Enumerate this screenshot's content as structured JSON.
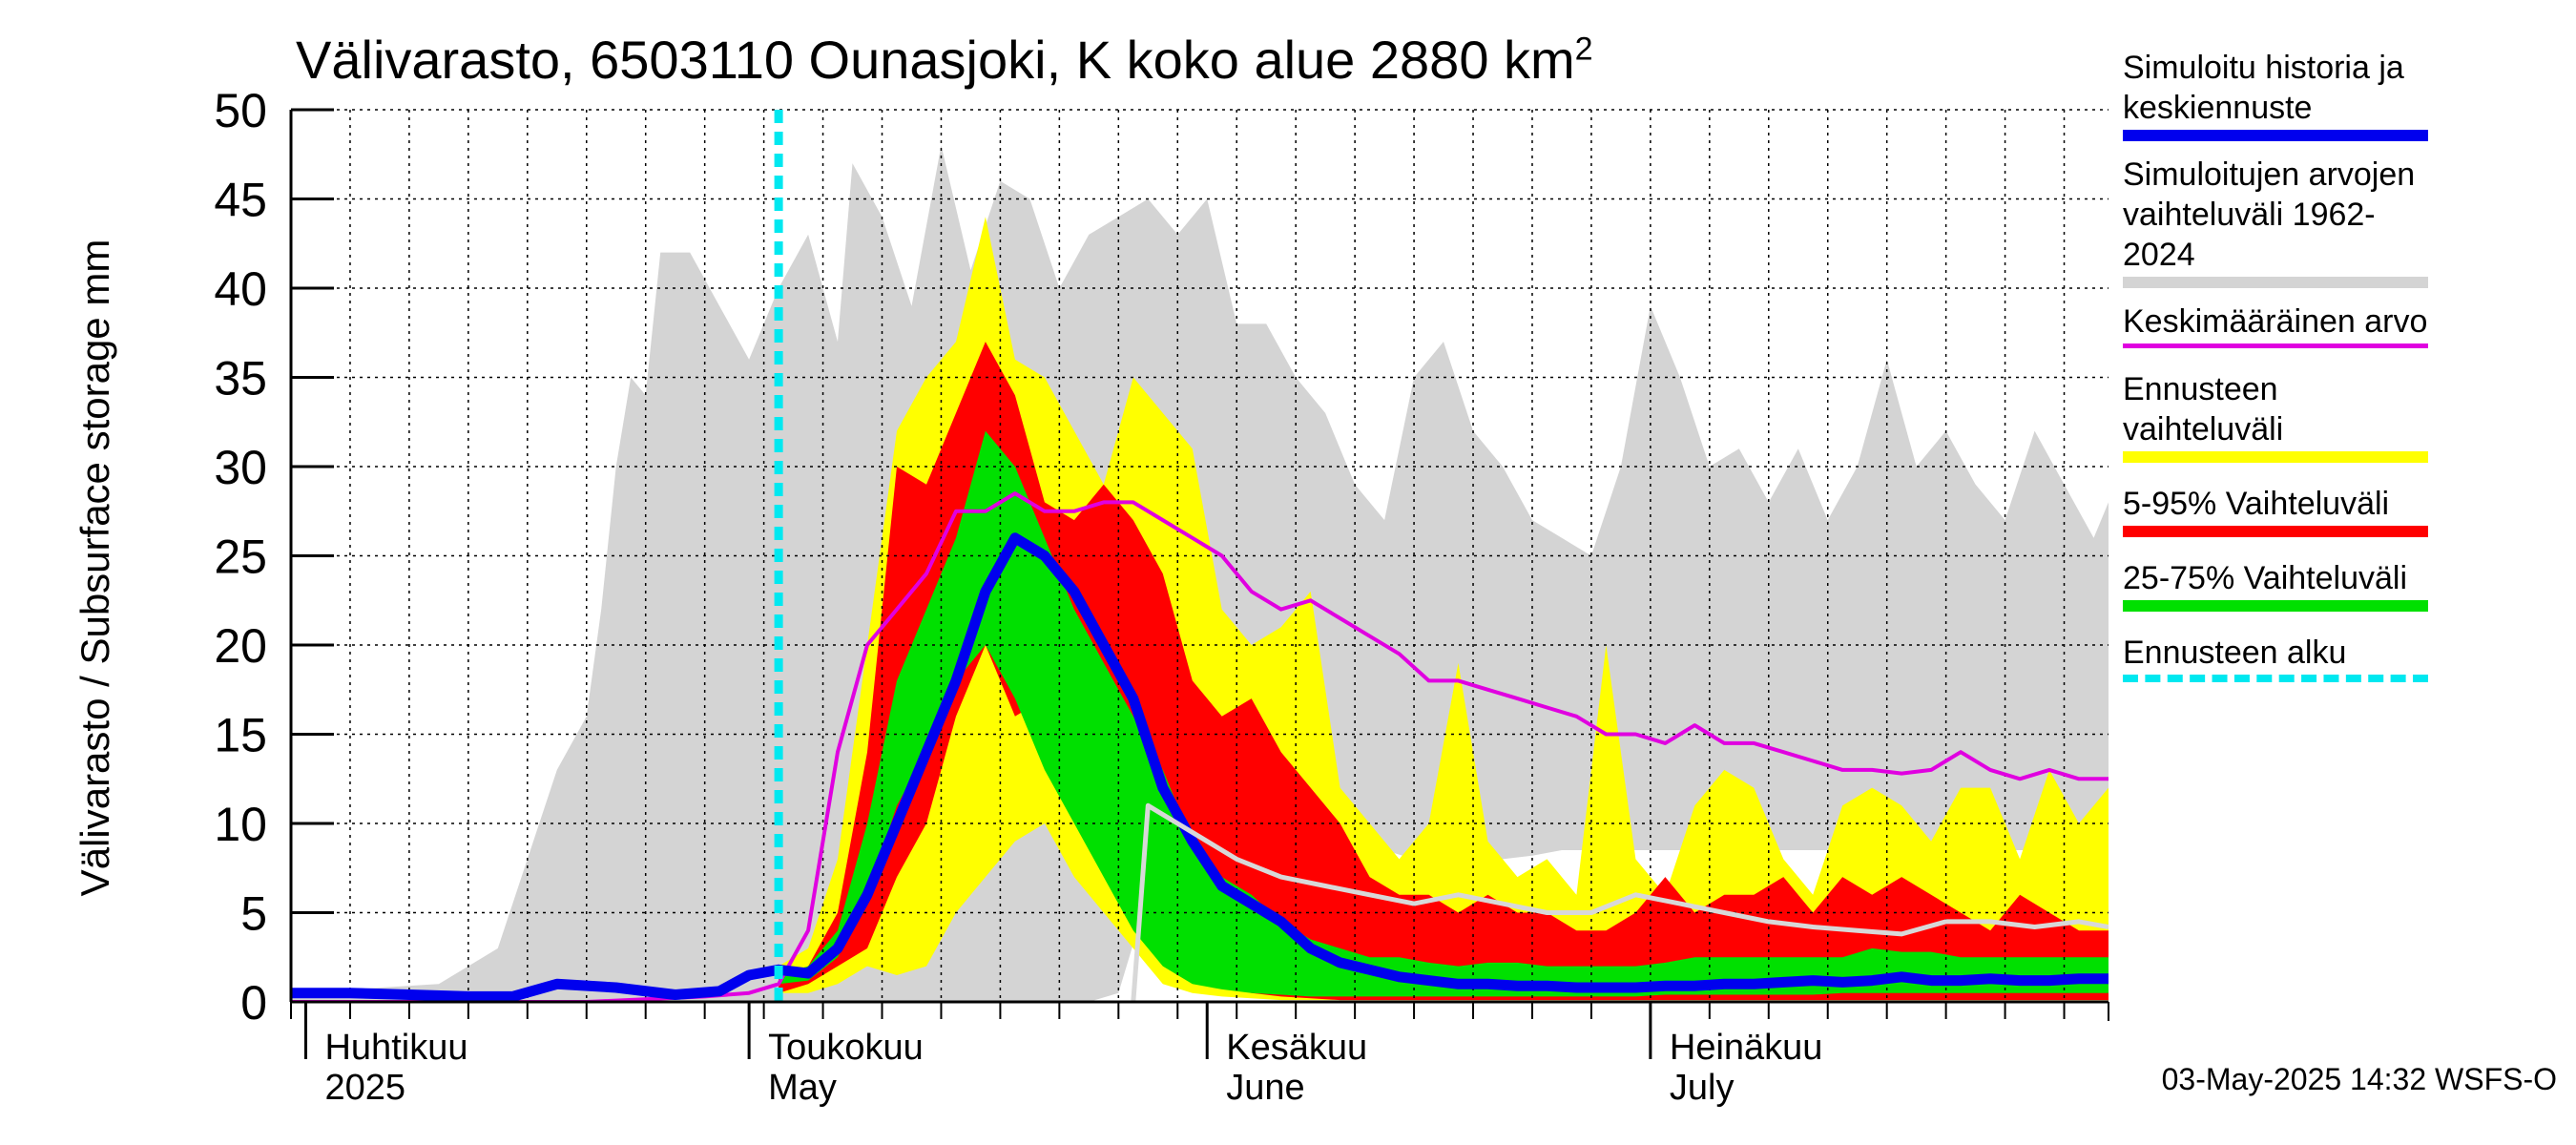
{
  "title_main": "Välivarasto, 6503110 Ounasjoki, K koko alue 2880 km",
  "title_sup": "2",
  "ylabel": "Välivarasto / Subsurface storage  mm",
  "footer": "03-May-2025 14:32 WSFS-O",
  "legend": [
    {
      "label": "Simuloitu historia ja keskiennuste",
      "color": "#0000ee",
      "style": "solid"
    },
    {
      "label": "Simuloitujen arvojen vaihteluväli 1962-2024",
      "color": "#d4d4d4",
      "style": "solid"
    },
    {
      "label": "Keskimääräinen arvo",
      "color": "#e000e0",
      "style": "solid"
    },
    {
      "label": "Ennusteen vaihteluväli",
      "color": "#ffff00",
      "style": "solid"
    },
    {
      "label": "5-95% Vaihteluväli",
      "color": "#ff0000",
      "style": "solid"
    },
    {
      "label": "25-75% Vaihteluväli",
      "color": "#00e000",
      "style": "solid"
    },
    {
      "label": "Ennusteen alku",
      "color": "#00e8f0",
      "style": "dashed"
    }
  ],
  "chart_data": {
    "type": "area",
    "xlabel": "",
    "ylabel": "Välivarasto / Subsurface storage  mm",
    "ylim": [
      0,
      50
    ],
    "yticks": [
      0,
      5,
      10,
      15,
      20,
      25,
      30,
      35,
      40,
      45,
      50
    ],
    "x_start_date": "2025-03-31",
    "x_end_date": "2025-08-01",
    "grid": true,
    "legend_position": "right",
    "month_labels": [
      {
        "fi": "Huhtikuu",
        "en": "2025",
        "date": "2025-04-01"
      },
      {
        "fi": "Toukokuu",
        "en": "May",
        "date": "2025-05-01"
      },
      {
        "fi": "Kesäkuu",
        "en": "June",
        "date": "2025-06-01"
      },
      {
        "fi": "Heinäkuu",
        "en": "July",
        "date": "2025-07-01"
      }
    ],
    "forecast_start_date": "2025-05-03",
    "series": [
      {
        "name": "Simuloitujen arvojen vaihteluväli 1962-2024",
        "kind": "band",
        "color": "#d4d4d4",
        "x": [
          "2025-03-31",
          "2025-04-10",
          "2025-04-14",
          "2025-04-16",
          "2025-04-18",
          "2025-04-20",
          "2025-04-21",
          "2025-04-22",
          "2025-04-23",
          "2025-04-24",
          "2025-04-25",
          "2025-04-27",
          "2025-04-29",
          "2025-05-01",
          "2025-05-03",
          "2025-05-05",
          "2025-05-07",
          "2025-05-08",
          "2025-05-10",
          "2025-05-12",
          "2025-05-14",
          "2025-05-16",
          "2025-05-18",
          "2025-05-20",
          "2025-05-22",
          "2025-05-24",
          "2025-05-26",
          "2025-05-28",
          "2025-05-30",
          "2025-06-01",
          "2025-06-03",
          "2025-06-05",
          "2025-06-07",
          "2025-06-09",
          "2025-06-11",
          "2025-06-13",
          "2025-06-15",
          "2025-06-17",
          "2025-06-19",
          "2025-06-21",
          "2025-06-23",
          "2025-06-25",
          "2025-06-27",
          "2025-06-29",
          "2025-07-01",
          "2025-07-03",
          "2025-07-05",
          "2025-07-07",
          "2025-07-09",
          "2025-07-11",
          "2025-07-13",
          "2025-07-15",
          "2025-07-17",
          "2025-07-19",
          "2025-07-21",
          "2025-07-23",
          "2025-07-25",
          "2025-07-27",
          "2025-07-29",
          "2025-07-31",
          "2025-08-01"
        ],
        "upper": [
          0.5,
          1,
          3,
          8,
          13,
          16,
          22,
          30,
          35,
          34,
          42,
          42,
          39,
          36,
          40,
          43,
          37,
          47,
          44,
          39,
          48,
          41,
          46,
          45,
          40,
          43,
          44,
          45,
          43,
          45,
          38,
          38,
          35,
          33,
          29,
          27,
          35,
          37,
          32,
          30,
          27,
          26,
          25,
          30,
          39,
          35,
          30,
          31,
          28,
          31,
          27,
          30,
          36,
          30,
          32,
          29,
          27,
          32,
          29,
          26,
          28
        ],
        "lower": [
          0,
          0,
          0,
          0,
          0,
          0,
          0,
          0,
          0,
          0,
          0,
          0,
          0,
          0,
          0,
          0,
          0,
          0,
          0,
          0,
          0,
          0,
          0,
          0,
          0,
          0,
          0.5,
          6,
          9,
          9,
          9,
          9,
          8.5,
          8,
          8.5,
          8.5,
          8,
          8,
          8,
          8,
          8.2,
          8.5,
          8.5,
          8.5,
          8.5,
          8.5,
          8.5,
          8.5,
          8.5,
          8.5,
          8.5,
          8.5,
          8.5,
          8.5,
          8.5,
          8.5,
          8.5,
          8.5,
          8.5,
          8.5,
          8.5
        ]
      },
      {
        "name": "Ennusteen vaihteluväli",
        "kind": "band",
        "color": "#ffff00",
        "x": [
          "2025-05-03",
          "2025-05-05",
          "2025-05-07",
          "2025-05-09",
          "2025-05-11",
          "2025-05-13",
          "2025-05-15",
          "2025-05-17",
          "2025-05-19",
          "2025-05-21",
          "2025-05-23",
          "2025-05-25",
          "2025-05-27",
          "2025-05-29",
          "2025-05-31",
          "2025-06-02",
          "2025-06-04",
          "2025-06-06",
          "2025-06-08",
          "2025-06-10",
          "2025-06-12",
          "2025-06-14",
          "2025-06-16",
          "2025-06-18",
          "2025-06-20",
          "2025-06-22",
          "2025-06-24",
          "2025-06-26",
          "2025-06-28",
          "2025-06-30",
          "2025-07-02",
          "2025-07-04",
          "2025-07-06",
          "2025-07-08",
          "2025-07-10",
          "2025-07-12",
          "2025-07-14",
          "2025-07-16",
          "2025-07-18",
          "2025-07-20",
          "2025-07-22",
          "2025-07-24",
          "2025-07-26",
          "2025-07-28",
          "2025-07-30",
          "2025-08-01"
        ],
        "upper": [
          2,
          3,
          8,
          20,
          32,
          35,
          37,
          44,
          36,
          35,
          32,
          29,
          35,
          33,
          31,
          22,
          20,
          21,
          23,
          12,
          10,
          8,
          10,
          19,
          9,
          7,
          8,
          6,
          20,
          8,
          6,
          11,
          13,
          12,
          8,
          6,
          11,
          12,
          11,
          9,
          12,
          12,
          8,
          13,
          10,
          12
        ],
        "lower": [
          0.5,
          0.5,
          1,
          2,
          1.5,
          2,
          5,
          7,
          9,
          10,
          7,
          5,
          3,
          1,
          0.5,
          0.3,
          0.2,
          0.1,
          0.1,
          0.1,
          0.1,
          0.1,
          0.1,
          0.1,
          0.1,
          0.1,
          0.1,
          0.1,
          0.1,
          0.1,
          0.1,
          0.1,
          0.1,
          0.1,
          0.1,
          0.1,
          0.1,
          0.1,
          0.1,
          0.1,
          0.1,
          0.1,
          0.1,
          0.1,
          0.1,
          0.1
        ]
      },
      {
        "name": "5-95% Vaihteluväli",
        "kind": "band",
        "color": "#ff0000",
        "x": [
          "2025-05-03",
          "2025-05-05",
          "2025-05-07",
          "2025-05-09",
          "2025-05-11",
          "2025-05-13",
          "2025-05-15",
          "2025-05-17",
          "2025-05-19",
          "2025-05-21",
          "2025-05-23",
          "2025-05-25",
          "2025-05-27",
          "2025-05-29",
          "2025-05-31",
          "2025-06-02",
          "2025-06-04",
          "2025-06-06",
          "2025-06-08",
          "2025-06-10",
          "2025-06-12",
          "2025-06-14",
          "2025-06-16",
          "2025-06-18",
          "2025-06-20",
          "2025-06-22",
          "2025-06-24",
          "2025-06-26",
          "2025-06-28",
          "2025-06-30",
          "2025-07-02",
          "2025-07-04",
          "2025-07-06",
          "2025-07-08",
          "2025-07-10",
          "2025-07-12",
          "2025-07-14",
          "2025-07-16",
          "2025-07-18",
          "2025-07-20",
          "2025-07-22",
          "2025-07-24",
          "2025-07-26",
          "2025-07-28",
          "2025-07-30",
          "2025-08-01"
        ],
        "upper": [
          1.5,
          2,
          5,
          14,
          30,
          29,
          33,
          37,
          34,
          28,
          27,
          29,
          27,
          24,
          18,
          16,
          17,
          14,
          12,
          10,
          7,
          6,
          6,
          5,
          6,
          5,
          5,
          4,
          4,
          5,
          7,
          5,
          6,
          6,
          7,
          5,
          7,
          6,
          7,
          6,
          5,
          4,
          6,
          5,
          4,
          4
        ],
        "lower": [
          0.5,
          1,
          2,
          3,
          7,
          10,
          16,
          20,
          16,
          17,
          13,
          8,
          5,
          3,
          2,
          1,
          0.5,
          0.3,
          0.2,
          0.1,
          0.1,
          0.1,
          0.1,
          0.1,
          0.1,
          0.1,
          0.1,
          0.1,
          0.1,
          0.1,
          0.1,
          0.1,
          0.1,
          0.1,
          0.1,
          0.1,
          0.1,
          0.1,
          0.1,
          0.1,
          0.1,
          0.1,
          0.1,
          0.1,
          0.1,
          0.1
        ]
      },
      {
        "name": "25-75% Vaihteluväli",
        "kind": "band",
        "color": "#00e000",
        "x": [
          "2025-05-03",
          "2025-05-05",
          "2025-05-07",
          "2025-05-09",
          "2025-05-11",
          "2025-05-13",
          "2025-05-15",
          "2025-05-17",
          "2025-05-19",
          "2025-05-21",
          "2025-05-23",
          "2025-05-25",
          "2025-05-27",
          "2025-05-29",
          "2025-05-31",
          "2025-06-02",
          "2025-06-04",
          "2025-06-06",
          "2025-06-08",
          "2025-06-10",
          "2025-06-12",
          "2025-06-14",
          "2025-06-16",
          "2025-06-18",
          "2025-06-20",
          "2025-06-22",
          "2025-06-24",
          "2025-06-26",
          "2025-06-28",
          "2025-06-30",
          "2025-07-02",
          "2025-07-04",
          "2025-07-06",
          "2025-07-08",
          "2025-07-10",
          "2025-07-12",
          "2025-07-14",
          "2025-07-16",
          "2025-07-18",
          "2025-07-20",
          "2025-07-22",
          "2025-07-24",
          "2025-07-26",
          "2025-07-28",
          "2025-07-30",
          "2025-08-01"
        ],
        "upper": [
          1.5,
          2,
          4,
          10,
          18,
          22,
          26,
          32,
          30,
          26,
          22,
          19,
          16,
          13,
          9,
          7,
          6,
          4.5,
          3.5,
          3,
          2.5,
          2.5,
          2.2,
          2,
          2.2,
          2.2,
          2,
          2,
          2,
          2,
          2.2,
          2.5,
          2.5,
          2.5,
          2.5,
          2.5,
          2.5,
          3,
          2.8,
          2.8,
          2.5,
          2.5,
          2.5,
          2.5,
          2.5,
          2.5
        ],
        "lower": [
          1,
          1.2,
          2.5,
          6,
          11,
          14,
          18,
          20,
          17,
          13,
          10,
          7,
          4,
          2,
          1,
          0.7,
          0.5,
          0.4,
          0.3,
          0.3,
          0.3,
          0.3,
          0.3,
          0.3,
          0.3,
          0.3,
          0.3,
          0.3,
          0.3,
          0.3,
          0.4,
          0.4,
          0.4,
          0.4,
          0.4,
          0.4,
          0.5,
          0.5,
          0.5,
          0.5,
          0.5,
          0.5,
          0.5,
          0.5,
          0.5,
          0.5
        ]
      },
      {
        "name": "Keskimääräinen arvo",
        "kind": "line",
        "color": "#e000e0",
        "x": [
          "2025-03-31",
          "2025-04-10",
          "2025-04-20",
          "2025-04-28",
          "2025-05-01",
          "2025-05-03",
          "2025-05-05",
          "2025-05-07",
          "2025-05-09",
          "2025-05-11",
          "2025-05-13",
          "2025-05-15",
          "2025-05-17",
          "2025-05-19",
          "2025-05-21",
          "2025-05-23",
          "2025-05-25",
          "2025-05-27",
          "2025-05-29",
          "2025-05-31",
          "2025-06-02",
          "2025-06-04",
          "2025-06-06",
          "2025-06-08",
          "2025-06-10",
          "2025-06-12",
          "2025-06-14",
          "2025-06-16",
          "2025-06-18",
          "2025-06-20",
          "2025-06-22",
          "2025-06-24",
          "2025-06-26",
          "2025-06-28",
          "2025-06-30",
          "2025-07-02",
          "2025-07-04",
          "2025-07-06",
          "2025-07-08",
          "2025-07-10",
          "2025-07-12",
          "2025-07-14",
          "2025-07-16",
          "2025-07-18",
          "2025-07-20",
          "2025-07-22",
          "2025-07-24",
          "2025-07-26",
          "2025-07-28",
          "2025-07-30",
          "2025-08-01"
        ],
        "y": [
          0,
          0,
          0,
          0.3,
          0.5,
          1,
          4,
          14,
          20,
          22,
          24,
          27.5,
          27.5,
          28.5,
          27.5,
          27.5,
          28,
          28,
          27,
          26,
          25,
          23,
          22,
          22.5,
          21.5,
          20.5,
          19.5,
          18,
          18,
          17.5,
          17,
          16.5,
          16,
          15,
          15,
          14.5,
          15.5,
          14.5,
          14.5,
          14,
          13.5,
          13,
          13,
          12.8,
          13,
          14,
          13,
          12.5,
          13,
          12.5,
          12.5
        ]
      },
      {
        "name": "Simuloitu historia ja keskiennuste",
        "kind": "line",
        "color": "#0000ee",
        "x": [
          "2025-03-31",
          "2025-04-04",
          "2025-04-08",
          "2025-04-12",
          "2025-04-15",
          "2025-04-18",
          "2025-04-22",
          "2025-04-26",
          "2025-04-29",
          "2025-05-01",
          "2025-05-03",
          "2025-05-05",
          "2025-05-07",
          "2025-05-09",
          "2025-05-11",
          "2025-05-13",
          "2025-05-15",
          "2025-05-17",
          "2025-05-19",
          "2025-05-21",
          "2025-05-23",
          "2025-05-25",
          "2025-05-27",
          "2025-05-29",
          "2025-05-31",
          "2025-06-02",
          "2025-06-04",
          "2025-06-06",
          "2025-06-08",
          "2025-06-10",
          "2025-06-12",
          "2025-06-14",
          "2025-06-16",
          "2025-06-18",
          "2025-06-20",
          "2025-06-22",
          "2025-06-24",
          "2025-06-26",
          "2025-06-28",
          "2025-06-30",
          "2025-07-02",
          "2025-07-04",
          "2025-07-06",
          "2025-07-08",
          "2025-07-10",
          "2025-07-12",
          "2025-07-14",
          "2025-07-16",
          "2025-07-18",
          "2025-07-20",
          "2025-07-22",
          "2025-07-24",
          "2025-07-26",
          "2025-07-28",
          "2025-07-30",
          "2025-08-01"
        ],
        "y": [
          0.5,
          0.5,
          0.4,
          0.3,
          0.3,
          1,
          0.8,
          0.4,
          0.6,
          1.5,
          1.8,
          1.6,
          3,
          6,
          10,
          14,
          18,
          23,
          26,
          25,
          23,
          20,
          17,
          12,
          9,
          6.5,
          5.5,
          4.5,
          3,
          2.2,
          1.8,
          1.4,
          1.2,
          1,
          1,
          0.9,
          0.9,
          0.8,
          0.8,
          0.8,
          0.9,
          0.9,
          1,
          1,
          1.1,
          1.2,
          1.1,
          1.2,
          1.4,
          1.2,
          1.2,
          1.3,
          1.2,
          1.2,
          1.3,
          1.3
        ]
      },
      {
        "name": "",
        "kind": "line",
        "color": "#d8d8d8",
        "x": [
          "2025-05-27",
          "2025-05-28",
          "2025-05-30",
          "2025-06-01",
          "2025-06-03",
          "2025-06-06",
          "2025-06-09",
          "2025-06-12",
          "2025-06-15",
          "2025-06-18",
          "2025-06-21",
          "2025-06-24",
          "2025-06-27",
          "2025-06-30",
          "2025-07-03",
          "2025-07-06",
          "2025-07-09",
          "2025-07-12",
          "2025-07-15",
          "2025-07-18",
          "2025-07-21",
          "2025-07-24",
          "2025-07-27",
          "2025-07-30",
          "2025-08-01"
        ],
        "y": [
          0,
          11,
          10,
          9,
          8,
          7,
          6.5,
          6,
          5.5,
          6,
          5.5,
          5,
          5,
          6,
          5.5,
          5,
          4.5,
          4.2,
          4,
          3.8,
          4.5,
          4.5,
          4.2,
          4.5,
          4.2
        ]
      }
    ]
  }
}
